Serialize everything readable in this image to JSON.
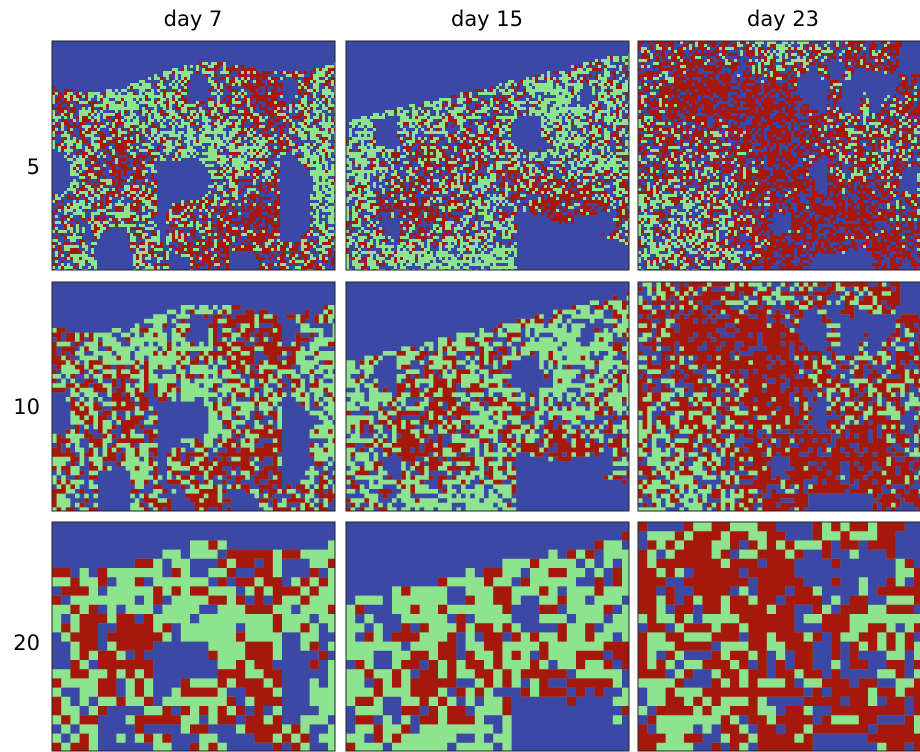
{
  "columns": [
    "day 7",
    "day 15",
    "day 23"
  ],
  "rows": [
    "5",
    "10",
    "20"
  ]
}
